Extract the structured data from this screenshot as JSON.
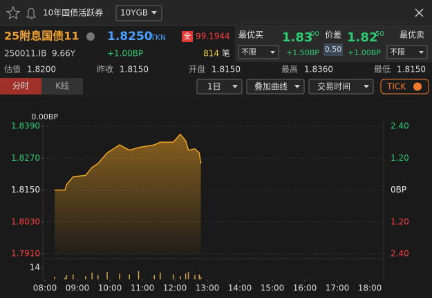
{
  "header": {
    "title": "10年国债活跃券",
    "code_select": "10YGB"
  },
  "quote": {
    "name": "25附息国债11",
    "price": "1.8250",
    "source": "TKN",
    "full_tag": "全",
    "full_price": "99.1944",
    "code": "250011.IB",
    "term": "9.66Y",
    "change": "+1.00BP",
    "trades": "814",
    "trades_unit": "笔"
  },
  "best": {
    "bid_label": "最优买",
    "bid_main": "1.83",
    "bid_sub": "00",
    "bid_filter": "不限",
    "bid_change": "+1.50BP",
    "spread_label": "价差",
    "spread": "0.50",
    "ask_main": "1.82",
    "ask_sub": "50",
    "ask_label": "最优卖",
    "ask_change": "+1.00BP",
    "ask_filter": "不限"
  },
  "stats": [
    {
      "label": "估值",
      "value": "1.8200"
    },
    {
      "label": "昨收",
      "value": "1.8150"
    },
    {
      "label": "开盘",
      "value": "1.8150"
    },
    {
      "label": "最高",
      "value": "1.8360"
    },
    {
      "label": "最低",
      "value": "1.8150"
    }
  ],
  "toolbar": {
    "tabs": [
      "分时",
      "K线"
    ],
    "period": "1日",
    "overlay": "叠加曲线",
    "session": "交易时间",
    "tick": "TICK"
  },
  "chart_data": {
    "type": "line",
    "change_label": "0.00BP",
    "x": [
      "08:18",
      "08:37",
      "08:40",
      "08:52",
      "09:15",
      "09:27",
      "09:38",
      "09:55",
      "10:18",
      "10:36",
      "10:53",
      "11:22",
      "11:33",
      "11:57",
      "12:10",
      "12:20",
      "12:25",
      "12:37",
      "12:45",
      "12:48"
    ],
    "series": [
      {
        "color": "#f5a623",
        "values": [
          1.815,
          1.815,
          1.817,
          1.82,
          1.8205,
          1.8235,
          1.825,
          1.829,
          1.832,
          1.83,
          1.831,
          1.832,
          1.833,
          1.833,
          1.836,
          1.8335,
          1.83,
          1.8305,
          1.829,
          1.825
        ]
      }
    ],
    "volume": {
      "color": "#d9a050",
      "values": [
        3,
        2,
        5,
        6,
        4,
        8,
        5,
        9,
        7,
        6,
        10,
        5,
        8,
        6,
        4,
        7,
        9,
        5,
        6,
        3
      ],
      "ylim": [
        0,
        14
      ],
      "yticks": [
        14
      ]
    },
    "xlim": [
      "08:00",
      "18:00"
    ],
    "xticks": [
      "08:00",
      "09:00",
      "10:00",
      "11:00",
      "12:00",
      "13:00",
      "14:00",
      "15:00",
      "16:00",
      "17:00",
      "18:00"
    ],
    "ylim": [
      1.791,
      1.839
    ],
    "yticks": [
      {
        "value": 1.839,
        "label": "1.8390"
      },
      {
        "value": 1.827,
        "label": "1.8270"
      },
      {
        "value": 1.815,
        "label": "1.8150"
      },
      {
        "value": 1.803,
        "label": "1.8030"
      },
      {
        "value": 1.791,
        "label": "1.7910"
      }
    ],
    "y2lim": [
      -2.4,
      2.4
    ],
    "y2ticks": [
      {
        "value": 2.4,
        "label": "2.40"
      },
      {
        "value": 1.2,
        "label": "1.20"
      },
      {
        "value": 0,
        "label": "0BP"
      },
      {
        "value": -1.2,
        "label": "1.20"
      },
      {
        "value": -2.4,
        "label": "2.40"
      }
    ],
    "grid": true
  }
}
